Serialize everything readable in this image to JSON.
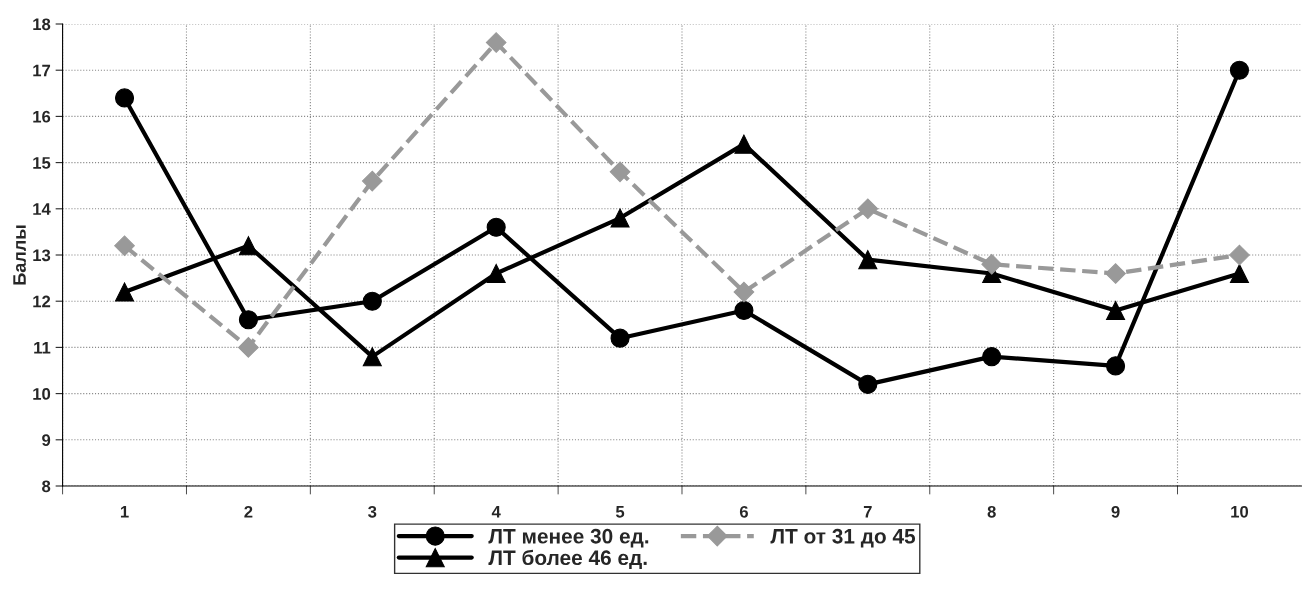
{
  "chart_data": {
    "type": "line",
    "ylabel": "Баллы",
    "categories": [
      "1",
      "2",
      "3",
      "4",
      "5",
      "6",
      "7",
      "8",
      "9",
      "10"
    ],
    "series": [
      {
        "name": "ЛТ менее 30 ед.",
        "color": "#000000",
        "marker": "circle",
        "line_style": "solid",
        "values": [
          16.4,
          11.6,
          12.0,
          13.6,
          11.2,
          11.8,
          10.2,
          10.8,
          10.6,
          17.0
        ]
      },
      {
        "name": "ЛТ более 46 ед.",
        "color": "#000000",
        "marker": "triangle",
        "line_style": "solid",
        "values": [
          12.2,
          13.2,
          10.8,
          12.6,
          13.8,
          15.4,
          12.9,
          12.6,
          11.8,
          12.6
        ]
      },
      {
        "name": "ЛТ от 31 до 45",
        "color": "#999999",
        "marker": "diamond",
        "line_style": "dashed",
        "values": [
          13.2,
          11.0,
          14.6,
          17.6,
          14.8,
          12.2,
          14.0,
          12.8,
          12.6,
          13.0
        ]
      }
    ],
    "ylim": [
      8,
      18
    ],
    "yticks": [
      8,
      9,
      10,
      11,
      12,
      13,
      14,
      15,
      16,
      17,
      18
    ],
    "grid": true,
    "legend": "bottom"
  }
}
